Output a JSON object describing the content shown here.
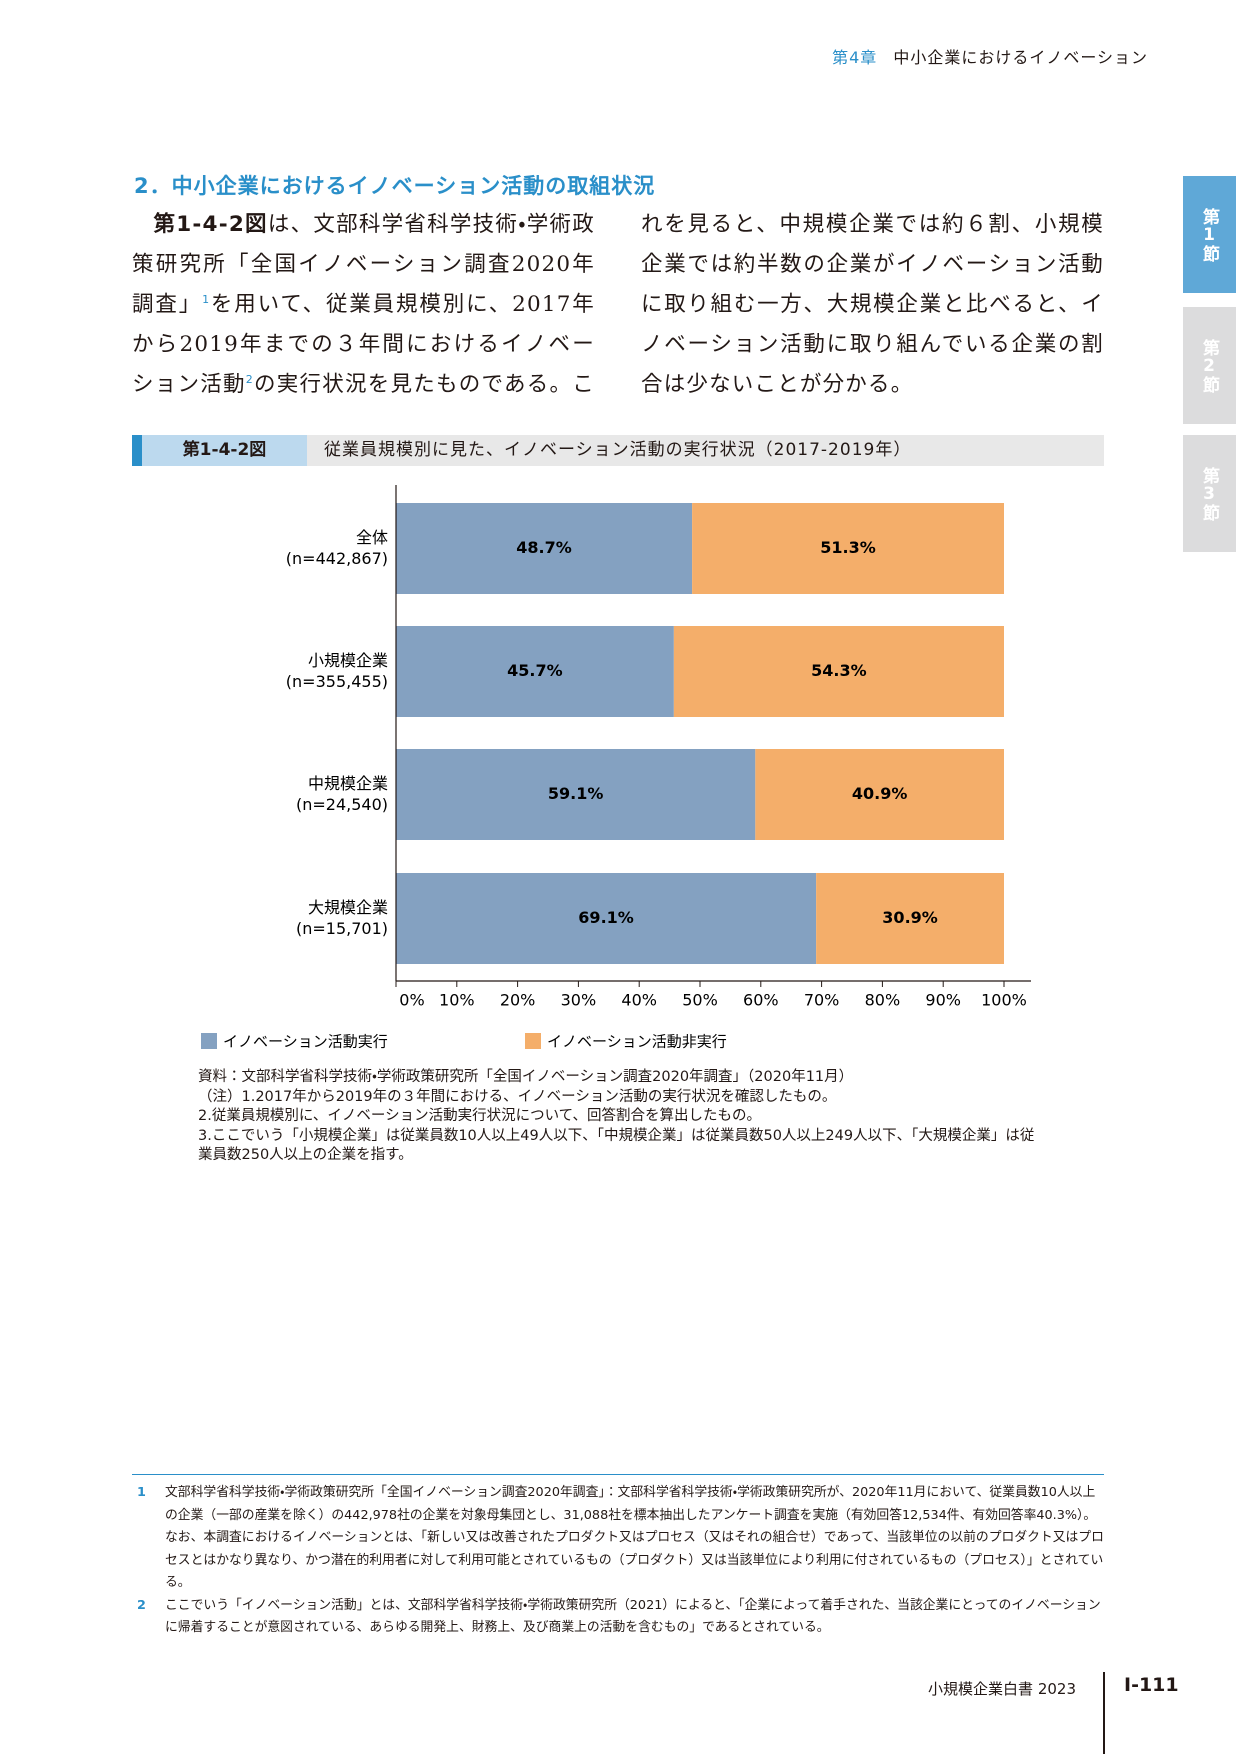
{
  "header": {
    "chapter": "第4章",
    "chapter_title": "中小企業におけるイノベーション"
  },
  "tabs": [
    "第1節",
    "第2節",
    "第3節"
  ],
  "section_heading": "2．中小企業におけるイノベーション活動の取組状況",
  "body": {
    "segments": [
      {
        "text": "第1-4-2図",
        "bold": true
      },
      {
        "text": "は、文部科学省科学技術・学術政策研究所「全国イノベーション調査2020年調査」"
      },
      {
        "ref": "1"
      },
      {
        "text": "を用いて、従業員規模別に、2017年から2019年までの３年間におけるイノベーション活動"
      },
      {
        "ref": "2"
      },
      {
        "text": "の実行状況を見たものである。これを見ると、中規模企業では約６割、小規模企業では約半数の企業がイノベーション活動に取り組む一方、大規模企業と比べると、イノベーション活動に取り組んでいる企業の割合は少ないことが分かる。"
      }
    ]
  },
  "figure": {
    "number": "第1-4-2図",
    "title": "従業員規模別に見た、イノベーション活動の実行状況（2017-2019年）"
  },
  "chart_data": {
    "type": "stacked-bar-horizontal",
    "categories": [
      [
        "全体",
        "(n=442,867)"
      ],
      [
        "小規模企業",
        "(n=355,455)"
      ],
      [
        "中規模企業",
        "(n=24,540)"
      ],
      [
        "大規模企業",
        "(n=15,701)"
      ]
    ],
    "series": [
      {
        "name": "イノベーション活動実行",
        "color": "#84a1c1",
        "values": [
          48.7,
          45.7,
          59.1,
          69.1
        ],
        "value_labels": [
          "48.7%",
          "45.7%",
          "59.1%",
          "69.1%"
        ]
      },
      {
        "name": "イノベーション活動非実行",
        "color": "#f4ae6a",
        "values": [
          51.3,
          54.3,
          40.9,
          30.9
        ],
        "value_labels": [
          "51.3%",
          "54.3%",
          "40.9%",
          "30.9%"
        ]
      }
    ],
    "xlim": [
      0,
      100
    ],
    "xticks": [
      {
        "value": 0,
        "label": "0%"
      },
      {
        "value": 10,
        "label": "10%"
      },
      {
        "value": 20,
        "label": "20%"
      },
      {
        "value": 30,
        "label": "30%"
      },
      {
        "value": 40,
        "label": "40%"
      },
      {
        "value": 50,
        "label": "50%"
      },
      {
        "value": 60,
        "label": "60%"
      },
      {
        "value": 70,
        "label": "70%"
      },
      {
        "value": 80,
        "label": "80%"
      },
      {
        "value": 90,
        "label": "90%"
      },
      {
        "value": 100,
        "label": "100%"
      }
    ]
  },
  "notes": [
    "資料：文部科学省科学技術・学術政策研究所「全国イノベーション調査2020年調査」（2020年11月）",
    "（注）1.2017年から2019年の３年間における、イノベーション活動の実行状況を確認したもの。",
    "2.従業員規模別に、イノベーション活動実行状況について、回答割合を算出したもの。",
    "3.ここでいう「小規模企業」は従業員数10人以上49人以下、「中規模企業」は従業員数50人以上249人以下、「大規模企業」は従業員数250人以上の企業を指す。"
  ],
  "footnotes": [
    {
      "number": "1",
      "text": "文部科学省科学技術・学術政策研究所「全国イノベーション調査2020年調査」：文部科学省科学技術・学術政策研究所が、2020年11月において、従業員数10人以上の企業（一部の産業を除く）の442,978社の企業を対象母集団とし、31,088社を標本抽出したアンケート調査を実施（有効回答12,534件、有効回答率40.3%）。なお、本調査におけるイノベーションとは、「新しい又は改善されたプロダクト又はプロセス（又はそれの組合せ）であって、当該単位の以前のプロダクト又はプロセスとはかなり異なり、かつ潜在的利用者に対して利用可能とされているもの（プロダクト）又は当該単位により利用に付されているもの（プロセス）」とされている。"
    },
    {
      "number": "2",
      "text": "ここでいう「イノベーション活動」とは、文部科学省科学技術・学術政策研究所（2021）によると、「企業によって着手された、当該企業にとってのイノベーションに帰着することが意図されている、あらゆる開発上、財務上、及び商業上の活動を含むもの」であるとされている。"
    }
  ],
  "footer": {
    "publication": "小規模企業白書 2023",
    "page": "Ⅰ-111"
  }
}
